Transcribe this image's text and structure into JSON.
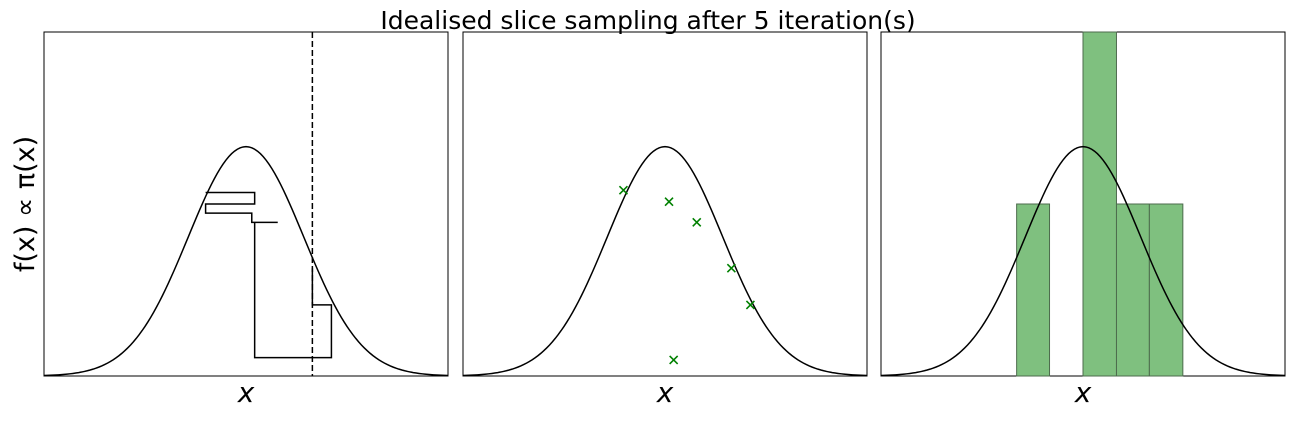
{
  "figure": {
    "title": "Idealised slice sampling after 5 iteration(s)",
    "ylabel": "f(x) ∝ π(x)"
  },
  "colors": {
    "curve": "#000000",
    "samples": "#008000",
    "bars": "#7fc07f",
    "bar_edge": "#4d6b4d"
  },
  "chart_data": [
    {
      "type": "line",
      "xlabel": "x",
      "ylabel": "f(x) ∝ π(x)",
      "xlim": [
        -3.5,
        3.5
      ],
      "ylim": [
        0,
        1.5
      ],
      "grid": false,
      "density": {
        "shape": "gaussian",
        "mean": 0,
        "sd": 1,
        "peak": 1
      },
      "trace": [
        {
          "x": -0.7,
          "y": 0.8
        },
        {
          "x": 0.15,
          "y": 0.8
        },
        {
          "x": 0.15,
          "y": 0.75
        },
        {
          "x": -0.7,
          "y": 0.75
        },
        {
          "x": -0.7,
          "y": 0.71
        },
        {
          "x": 0.1,
          "y": 0.71
        },
        {
          "x": 0.1,
          "y": 0.67
        },
        {
          "x": 0.55,
          "y": 0.67
        },
        {
          "x": 0.15,
          "y": 0.67
        },
        {
          "x": 0.15,
          "y": 0.08
        },
        {
          "x": 1.48,
          "y": 0.08
        },
        {
          "x": 1.48,
          "y": 0.31
        },
        {
          "x": 1.15,
          "y": 0.31
        },
        {
          "x": 1.15,
          "y": 0.47
        }
      ],
      "current_x": 1.15
    },
    {
      "type": "scatter",
      "xlabel": "x",
      "xlim": [
        -3.5,
        3.5
      ],
      "ylim": [
        0,
        1.5
      ],
      "density": {
        "shape": "gaussian",
        "mean": 0,
        "sd": 1,
        "peak": 1
      },
      "points": [
        {
          "x": -0.72,
          "y": 0.81
        },
        {
          "x": 0.07,
          "y": 0.76
        },
        {
          "x": 0.55,
          "y": 0.67
        },
        {
          "x": 1.15,
          "y": 0.47
        },
        {
          "x": 1.48,
          "y": 0.31
        },
        {
          "x": 0.15,
          "y": 0.07
        }
      ]
    },
    {
      "type": "bar",
      "xlabel": "x",
      "xlim": [
        -3.5,
        3.5
      ],
      "density": {
        "shape": "gaussian",
        "mean": 0,
        "sd": 1,
        "peak": 1
      },
      "ylim_counts": [
        0,
        2
      ],
      "histogram": [
        {
          "x0": -1.15,
          "x1": -0.58,
          "count": 1
        },
        {
          "x0": 0.0,
          "x1": 0.58,
          "count": 2
        },
        {
          "x0": 0.58,
          "x1": 1.15,
          "count": 1
        },
        {
          "x0": 1.15,
          "x1": 1.73,
          "count": 1
        }
      ]
    }
  ]
}
